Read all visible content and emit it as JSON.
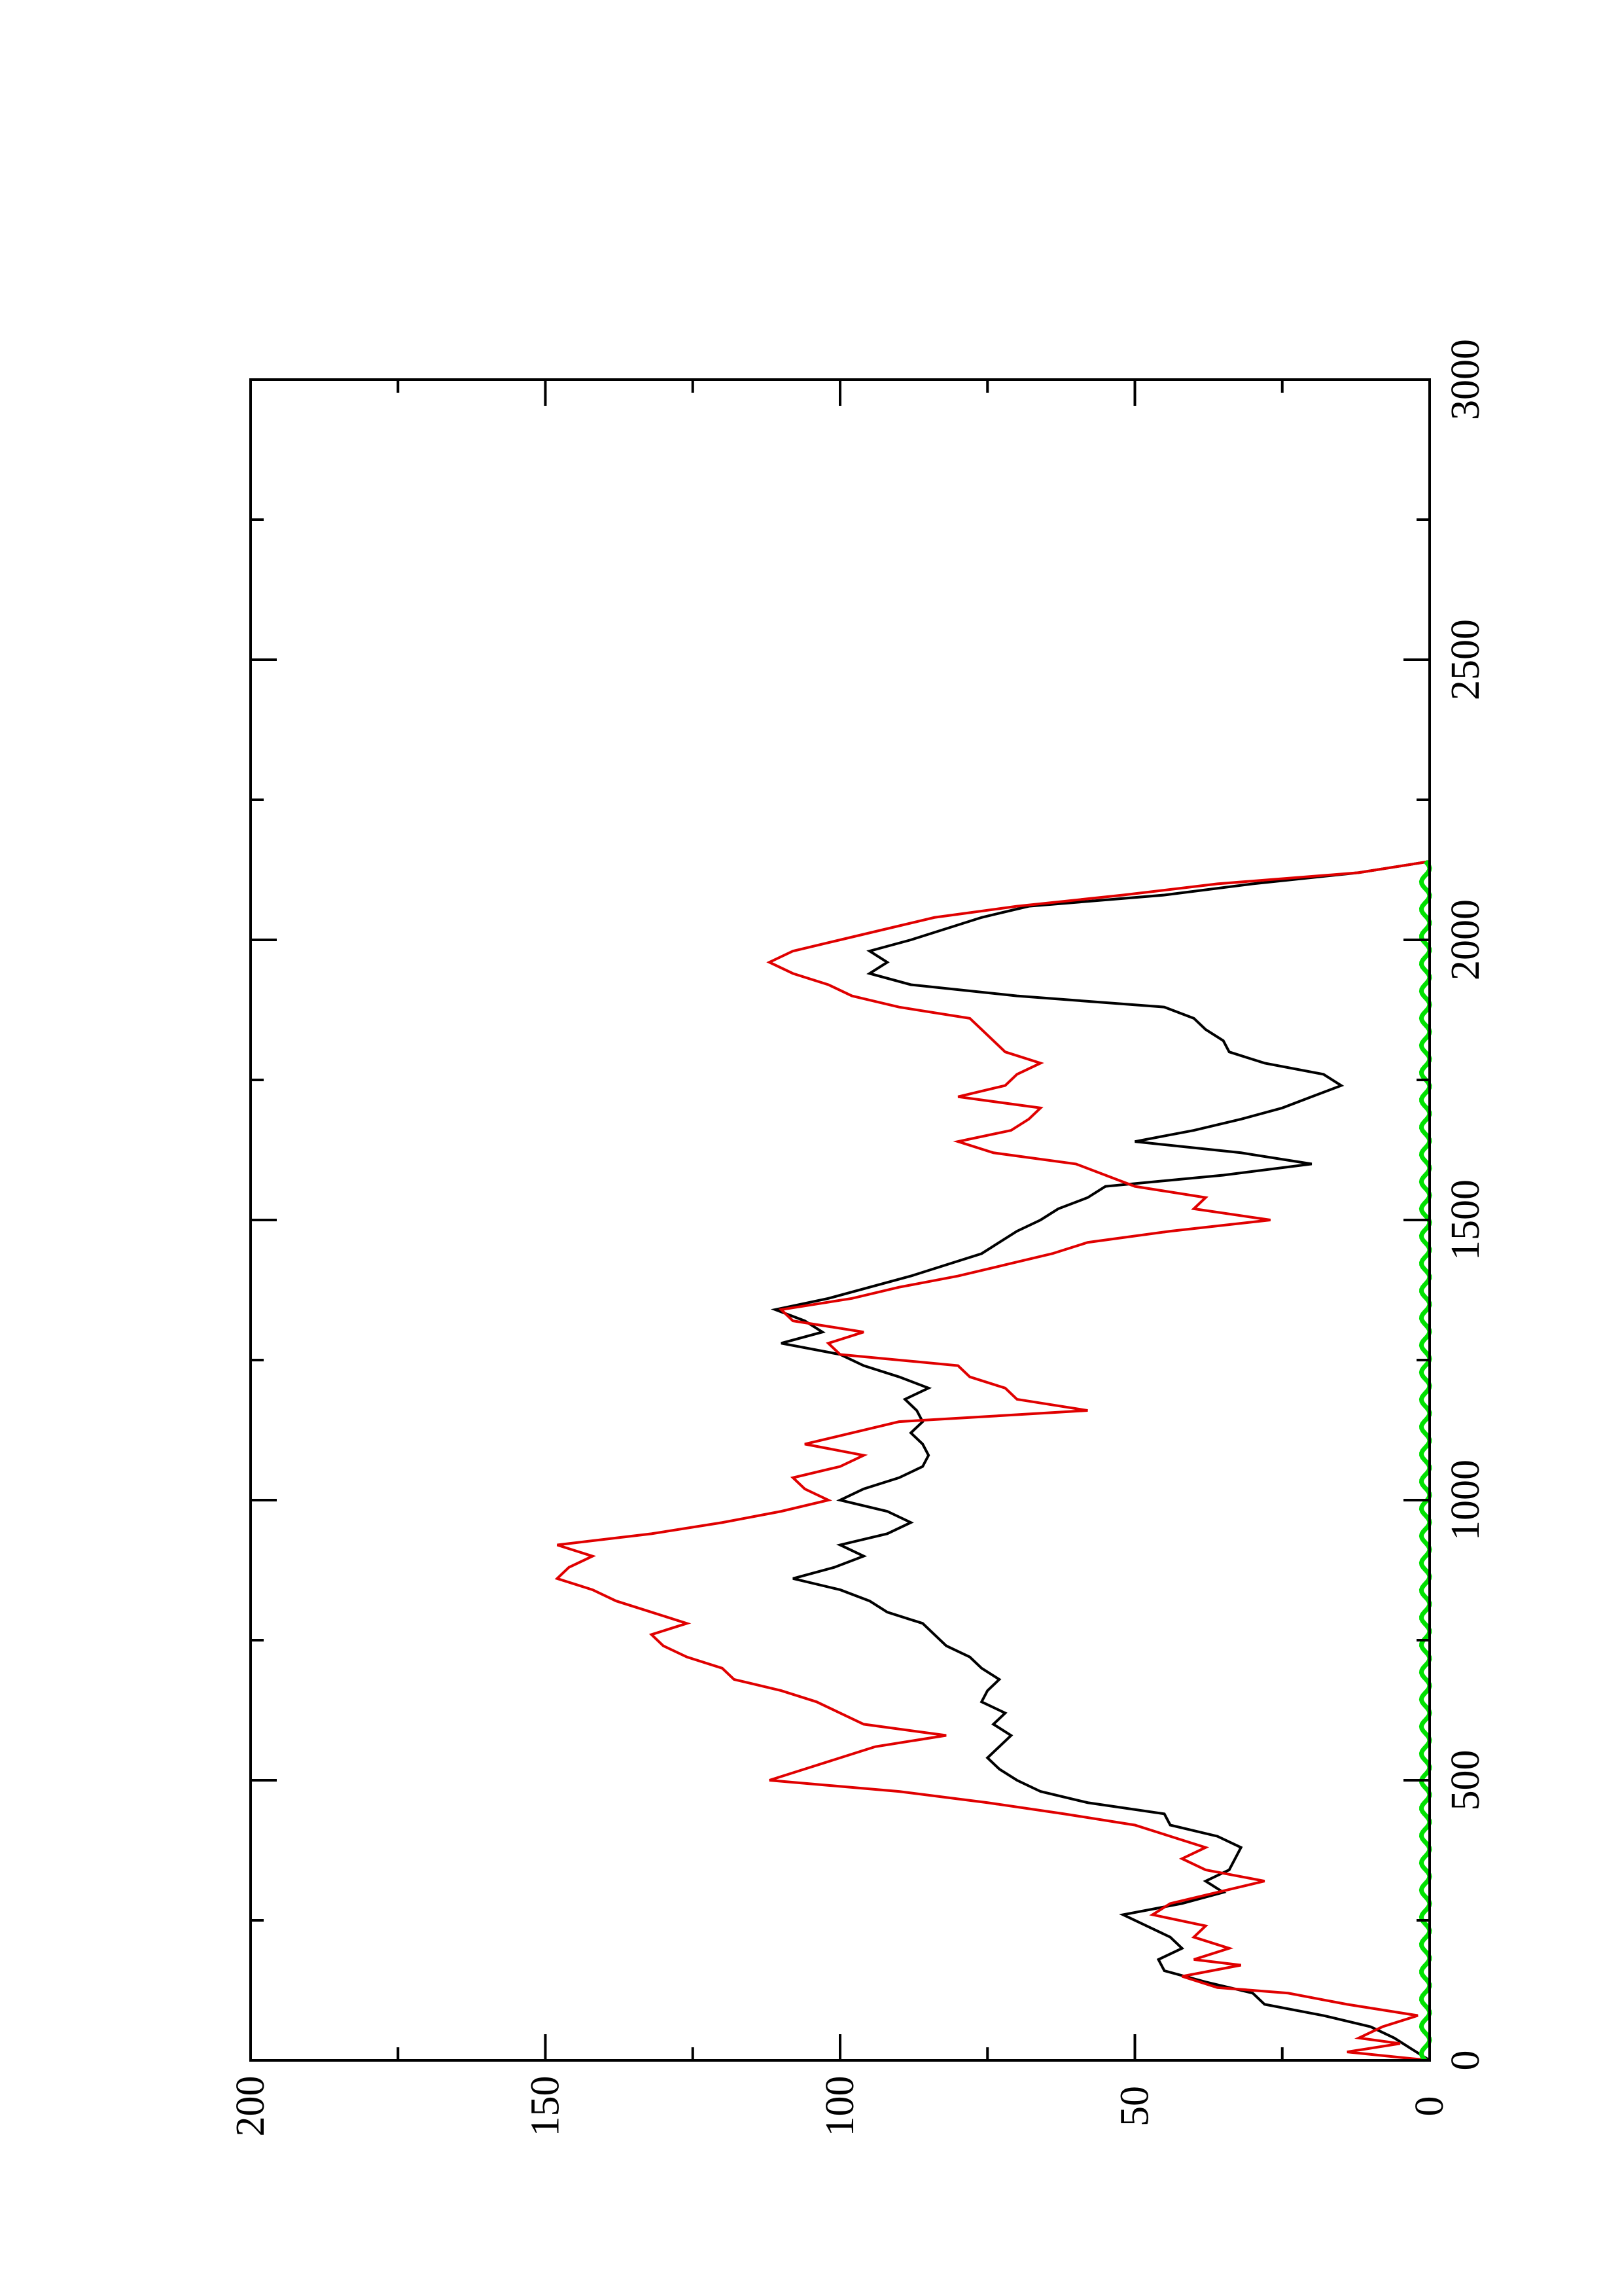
{
  "chart_data": {
    "type": "line",
    "orientation": "rotated-90-ccw",
    "title": "",
    "xlabel": "",
    "ylabel": "",
    "xlim": [
      0,
      3000
    ],
    "ylim": [
      0,
      200
    ],
    "x_ticks": [
      "0",
      "500",
      "1000",
      "1500",
      "2000",
      "2500",
      "3000"
    ],
    "x_tick_values": [
      0,
      500,
      1000,
      1500,
      2000,
      2500,
      3000
    ],
    "y_ticks": [
      "0",
      "50",
      "100",
      "150",
      "200"
    ],
    "y_tick_values": [
      0,
      50,
      100,
      150,
      200
    ],
    "grid": false,
    "legend": "none",
    "series": [
      {
        "color": "#000000",
        "points": [
          [
            0,
            0
          ],
          [
            20,
            3
          ],
          [
            40,
            6
          ],
          [
            60,
            10
          ],
          [
            80,
            18
          ],
          [
            100,
            28
          ],
          [
            120,
            30
          ],
          [
            140,
            38
          ],
          [
            160,
            45
          ],
          [
            180,
            46
          ],
          [
            200,
            42
          ],
          [
            220,
            44
          ],
          [
            240,
            48
          ],
          [
            260,
            52
          ],
          [
            280,
            42
          ],
          [
            300,
            35
          ],
          [
            320,
            38
          ],
          [
            340,
            34
          ],
          [
            360,
            33
          ],
          [
            380,
            32
          ],
          [
            400,
            36
          ],
          [
            420,
            44
          ],
          [
            440,
            45
          ],
          [
            460,
            58
          ],
          [
            480,
            66
          ],
          [
            500,
            70
          ],
          [
            520,
            73
          ],
          [
            540,
            75
          ],
          [
            560,
            73
          ],
          [
            580,
            71
          ],
          [
            600,
            74
          ],
          [
            620,
            72
          ],
          [
            640,
            76
          ],
          [
            660,
            75
          ],
          [
            680,
            73
          ],
          [
            700,
            76
          ],
          [
            720,
            78
          ],
          [
            740,
            82
          ],
          [
            760,
            84
          ],
          [
            780,
            86
          ],
          [
            800,
            92
          ],
          [
            820,
            95
          ],
          [
            840,
            100
          ],
          [
            860,
            108
          ],
          [
            880,
            101
          ],
          [
            900,
            96
          ],
          [
            920,
            100
          ],
          [
            940,
            92
          ],
          [
            960,
            88
          ],
          [
            980,
            92
          ],
          [
            1000,
            100
          ],
          [
            1020,
            96
          ],
          [
            1040,
            90
          ],
          [
            1060,
            86
          ],
          [
            1080,
            85
          ],
          [
            1100,
            86
          ],
          [
            1120,
            88
          ],
          [
            1140,
            86
          ],
          [
            1160,
            87
          ],
          [
            1180,
            89
          ],
          [
            1200,
            85
          ],
          [
            1220,
            90
          ],
          [
            1240,
            96
          ],
          [
            1260,
            100
          ],
          [
            1280,
            110
          ],
          [
            1300,
            103
          ],
          [
            1320,
            106
          ],
          [
            1340,
            111
          ],
          [
            1360,
            102
          ],
          [
            1380,
            95
          ],
          [
            1400,
            88
          ],
          [
            1420,
            82
          ],
          [
            1440,
            76
          ],
          [
            1460,
            73
          ],
          [
            1480,
            70
          ],
          [
            1500,
            66
          ],
          [
            1520,
            63
          ],
          [
            1540,
            58
          ],
          [
            1560,
            55
          ],
          [
            1580,
            35
          ],
          [
            1600,
            20
          ],
          [
            1620,
            32
          ],
          [
            1640,
            50
          ],
          [
            1660,
            40
          ],
          [
            1680,
            32
          ],
          [
            1700,
            25
          ],
          [
            1720,
            20
          ],
          [
            1740,
            15
          ],
          [
            1760,
            18
          ],
          [
            1780,
            28
          ],
          [
            1800,
            34
          ],
          [
            1820,
            35
          ],
          [
            1840,
            38
          ],
          [
            1860,
            40
          ],
          [
            1880,
            45
          ],
          [
            1900,
            70
          ],
          [
            1920,
            88
          ],
          [
            1940,
            95
          ],
          [
            1960,
            92
          ],
          [
            1980,
            95
          ],
          [
            2000,
            88
          ],
          [
            2020,
            82
          ],
          [
            2040,
            76
          ],
          [
            2060,
            68
          ],
          [
            2080,
            45
          ],
          [
            2100,
            30
          ],
          [
            2120,
            12
          ],
          [
            2140,
            0
          ]
        ]
      },
      {
        "color": "#e00000",
        "points": [
          [
            0,
            0
          ],
          [
            15,
            14
          ],
          [
            30,
            5
          ],
          [
            40,
            12
          ],
          [
            60,
            8
          ],
          [
            80,
            2
          ],
          [
            100,
            14
          ],
          [
            120,
            24
          ],
          [
            130,
            36
          ],
          [
            150,
            42
          ],
          [
            170,
            32
          ],
          [
            180,
            40
          ],
          [
            200,
            34
          ],
          [
            220,
            40
          ],
          [
            240,
            38
          ],
          [
            260,
            47
          ],
          [
            280,
            44
          ],
          [
            300,
            36
          ],
          [
            320,
            28
          ],
          [
            340,
            38
          ],
          [
            360,
            42
          ],
          [
            380,
            38
          ],
          [
            400,
            44
          ],
          [
            420,
            50
          ],
          [
            440,
            62
          ],
          [
            460,
            75
          ],
          [
            480,
            90
          ],
          [
            500,
            112
          ],
          [
            520,
            106
          ],
          [
            540,
            100
          ],
          [
            560,
            94
          ],
          [
            580,
            82
          ],
          [
            600,
            96
          ],
          [
            620,
            100
          ],
          [
            640,
            104
          ],
          [
            660,
            110
          ],
          [
            680,
            118
          ],
          [
            700,
            120
          ],
          [
            720,
            126
          ],
          [
            740,
            130
          ],
          [
            760,
            132
          ],
          [
            780,
            126
          ],
          [
            800,
            132
          ],
          [
            820,
            138
          ],
          [
            840,
            142
          ],
          [
            860,
            148
          ],
          [
            880,
            146
          ],
          [
            900,
            142
          ],
          [
            920,
            148
          ],
          [
            940,
            132
          ],
          [
            960,
            120
          ],
          [
            980,
            110
          ],
          [
            1000,
            102
          ],
          [
            1020,
            106
          ],
          [
            1040,
            108
          ],
          [
            1060,
            100
          ],
          [
            1080,
            96
          ],
          [
            1100,
            106
          ],
          [
            1120,
            98
          ],
          [
            1140,
            90
          ],
          [
            1160,
            58
          ],
          [
            1180,
            70
          ],
          [
            1200,
            72
          ],
          [
            1220,
            78
          ],
          [
            1240,
            80
          ],
          [
            1260,
            100
          ],
          [
            1280,
            102
          ],
          [
            1300,
            96
          ],
          [
            1320,
            108
          ],
          [
            1340,
            110
          ],
          [
            1360,
            98
          ],
          [
            1380,
            90
          ],
          [
            1400,
            80
          ],
          [
            1420,
            72
          ],
          [
            1440,
            64
          ],
          [
            1460,
            58
          ],
          [
            1480,
            44
          ],
          [
            1500,
            27
          ],
          [
            1520,
            40
          ],
          [
            1540,
            38
          ],
          [
            1560,
            50
          ],
          [
            1580,
            55
          ],
          [
            1600,
            60
          ],
          [
            1620,
            74
          ],
          [
            1640,
            80
          ],
          [
            1660,
            71
          ],
          [
            1680,
            68
          ],
          [
            1700,
            66
          ],
          [
            1720,
            80
          ],
          [
            1740,
            72
          ],
          [
            1760,
            70
          ],
          [
            1780,
            66
          ],
          [
            1800,
            72
          ],
          [
            1820,
            74
          ],
          [
            1840,
            76
          ],
          [
            1860,
            78
          ],
          [
            1880,
            90
          ],
          [
            1900,
            98
          ],
          [
            1920,
            102
          ],
          [
            1940,
            108
          ],
          [
            1960,
            112
          ],
          [
            1980,
            108
          ],
          [
            2000,
            100
          ],
          [
            2020,
            92
          ],
          [
            2040,
            84
          ],
          [
            2060,
            70
          ],
          [
            2080,
            52
          ],
          [
            2100,
            36
          ],
          [
            2120,
            12
          ],
          [
            2140,
            0
          ]
        ]
      },
      {
        "color": "#00e000",
        "points": [
          [
            0,
            0
          ],
          [
            2140,
            0
          ]
        ]
      }
    ]
  }
}
